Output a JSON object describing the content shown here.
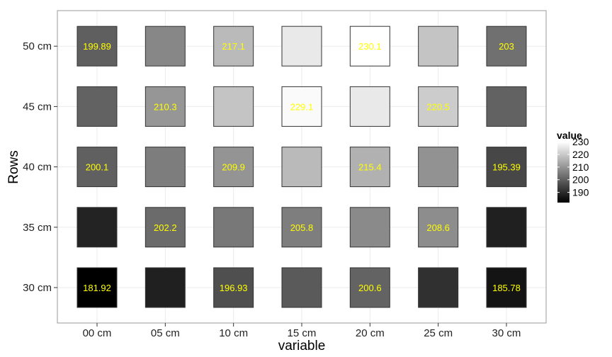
{
  "chart_data": {
    "type": "heatmap",
    "xlabel": "variable",
    "ylabel": "Rows",
    "x_categories": [
      "00 cm",
      "05 cm",
      "10 cm",
      "15 cm",
      "20 cm",
      "25 cm",
      "30 cm"
    ],
    "y_categories": [
      "30 cm",
      "35 cm",
      "40 cm",
      "45 cm",
      "50 cm"
    ],
    "color_scale": {
      "low": "#000000",
      "high": "#ffffff",
      "min": 181.92,
      "max": 230.1
    },
    "grid": true,
    "cells": [
      {
        "x": "00 cm",
        "y": "50 cm",
        "value": 199.89,
        "label": "199.89"
      },
      {
        "x": "05 cm",
        "y": "50 cm",
        "value": 207.5,
        "label": ""
      },
      {
        "x": "10 cm",
        "y": "50 cm",
        "value": 217.1,
        "label": "217.1"
      },
      {
        "x": "15 cm",
        "y": "50 cm",
        "value": 226,
        "label": ""
      },
      {
        "x": "20 cm",
        "y": "50 cm",
        "value": 230.1,
        "label": "230.1"
      },
      {
        "x": "25 cm",
        "y": "50 cm",
        "value": 219,
        "label": ""
      },
      {
        "x": "30 cm",
        "y": "50 cm",
        "value": 203,
        "label": "203"
      },
      {
        "x": "00 cm",
        "y": "45 cm",
        "value": 200.5,
        "label": ""
      },
      {
        "x": "05 cm",
        "y": "45 cm",
        "value": 210.3,
        "label": "210.3"
      },
      {
        "x": "10 cm",
        "y": "45 cm",
        "value": 219,
        "label": ""
      },
      {
        "x": "15 cm",
        "y": "45 cm",
        "value": 229.1,
        "label": "229.1"
      },
      {
        "x": "20 cm",
        "y": "45 cm",
        "value": 226,
        "label": ""
      },
      {
        "x": "25 cm",
        "y": "45 cm",
        "value": 220.5,
        "label": "220.5"
      },
      {
        "x": "30 cm",
        "y": "45 cm",
        "value": 200.5,
        "label": ""
      },
      {
        "x": "00 cm",
        "y": "40 cm",
        "value": 200.1,
        "label": "200.1"
      },
      {
        "x": "05 cm",
        "y": "40 cm",
        "value": 205.5,
        "label": ""
      },
      {
        "x": "10 cm",
        "y": "40 cm",
        "value": 209.9,
        "label": "209.9"
      },
      {
        "x": "15 cm",
        "y": "40 cm",
        "value": 217,
        "label": ""
      },
      {
        "x": "20 cm",
        "y": "40 cm",
        "value": 215.4,
        "label": "215.4"
      },
      {
        "x": "25 cm",
        "y": "40 cm",
        "value": 209.5,
        "label": ""
      },
      {
        "x": "30 cm",
        "y": "40 cm",
        "value": 195.39,
        "label": "195.39"
      },
      {
        "x": "00 cm",
        "y": "35 cm",
        "value": 188.5,
        "label": ""
      },
      {
        "x": "05 cm",
        "y": "35 cm",
        "value": 202.2,
        "label": "202.2"
      },
      {
        "x": "10 cm",
        "y": "35 cm",
        "value": 204.5,
        "label": ""
      },
      {
        "x": "15 cm",
        "y": "35 cm",
        "value": 205.8,
        "label": "205.8"
      },
      {
        "x": "20 cm",
        "y": "35 cm",
        "value": 208,
        "label": ""
      },
      {
        "x": "25 cm",
        "y": "35 cm",
        "value": 208.6,
        "label": "208.6"
      },
      {
        "x": "30 cm",
        "y": "35 cm",
        "value": 188,
        "label": ""
      },
      {
        "x": "00 cm",
        "y": "30 cm",
        "value": 181.92,
        "label": "181.92"
      },
      {
        "x": "05 cm",
        "y": "30 cm",
        "value": 188,
        "label": ""
      },
      {
        "x": "10 cm",
        "y": "30 cm",
        "value": 196.93,
        "label": "196.93"
      },
      {
        "x": "15 cm",
        "y": "30 cm",
        "value": 199,
        "label": ""
      },
      {
        "x": "20 cm",
        "y": "30 cm",
        "value": 200.6,
        "label": "200.6"
      },
      {
        "x": "25 cm",
        "y": "30 cm",
        "value": 191,
        "label": ""
      },
      {
        "x": "30 cm",
        "y": "30 cm",
        "value": 185.78,
        "label": "185.78"
      }
    ],
    "legend": {
      "title": "value",
      "position": "right",
      "ticks": [
        230,
        220,
        210,
        200,
        190
      ]
    },
    "colors": {
      "panel_background": "#ffffff",
      "grid": "#ebebeb",
      "panel_border": "#999999",
      "tile_border": "#333333",
      "label_text": "#ffff00"
    }
  }
}
